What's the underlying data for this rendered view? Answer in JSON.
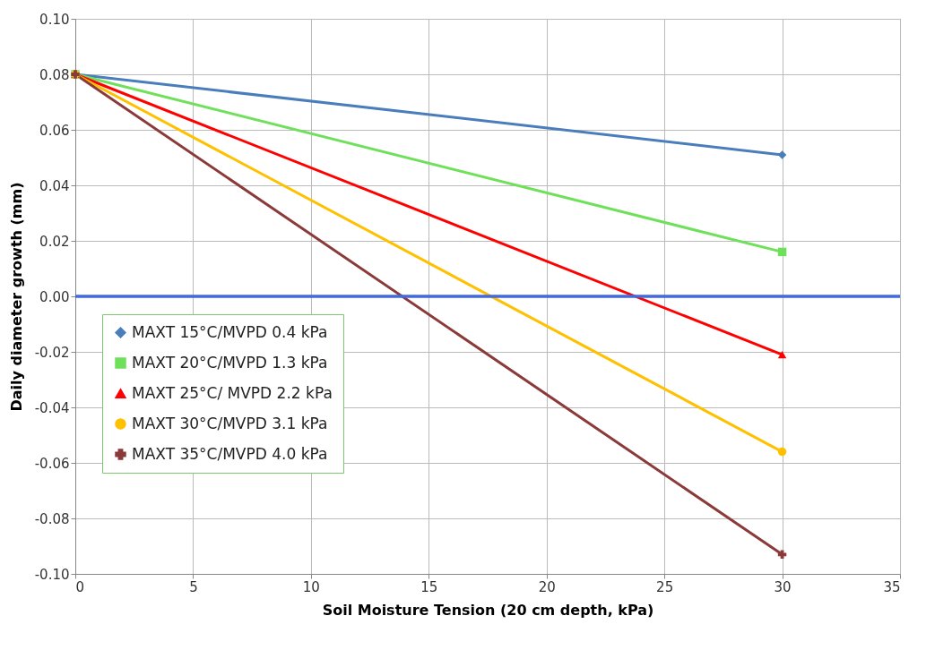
{
  "chart_data": {
    "type": "line",
    "xlabel": "Soil Moisture Tension (20 cm depth, kPa)",
    "ylabel": "Daily diameter  growth (mm)",
    "x": [
      0,
      30
    ],
    "series": [
      {
        "name": "MAXT 15°C/MVPD 0.4 kPa",
        "color": "#4a7ebb",
        "marker": "diamond",
        "values": [
          0.08,
          0.051
        ]
      },
      {
        "name": "MAXT 20°C/MVPD 1.3 kPa",
        "color": "#6ee05a",
        "marker": "square",
        "values": [
          0.08,
          0.016
        ]
      },
      {
        "name": "MAXT 25°C/ MVPD 2.2 kPa",
        "color": "#ff0000",
        "marker": "triangle",
        "values": [
          0.08,
          -0.021
        ]
      },
      {
        "name": "MAXT 30°C/MVPD 3.1 kPa",
        "color": "#ffc000",
        "marker": "circle",
        "values": [
          0.08,
          -0.056
        ]
      },
      {
        "name": "MAXT 35°C/MVPD 4.0 kPa",
        "color": "#8b3a3a",
        "marker": "cross",
        "values": [
          0.08,
          -0.093
        ]
      }
    ],
    "xlim": [
      0,
      35
    ],
    "xticks": [
      0,
      5,
      10,
      15,
      20,
      25,
      30,
      35
    ],
    "ylim": [
      -0.1,
      0.1
    ],
    "yticks": [
      {
        "value": -0.1,
        "label": "-0.10"
      },
      {
        "value": -0.08,
        "label": "-0.08"
      },
      {
        "value": -0.06,
        "label": "-0.06"
      },
      {
        "value": -0.04,
        "label": "-0.04"
      },
      {
        "value": -0.02,
        "label": "-0.02"
      },
      {
        "value": 0,
        "label": "0.00"
      },
      {
        "value": 0.02,
        "label": "0.02"
      },
      {
        "value": 0.04,
        "label": "0.04"
      },
      {
        "value": 0.06,
        "label": "0.06"
      },
      {
        "value": 0.08,
        "label": "0.08"
      },
      {
        "value": 0.1,
        "label": "0.10"
      }
    ],
    "ref_lines": [
      {
        "axis": "y",
        "value": 0,
        "color": "#4169e1"
      }
    ],
    "grid": true,
    "legend": "left",
    "line_style": "solid"
  }
}
